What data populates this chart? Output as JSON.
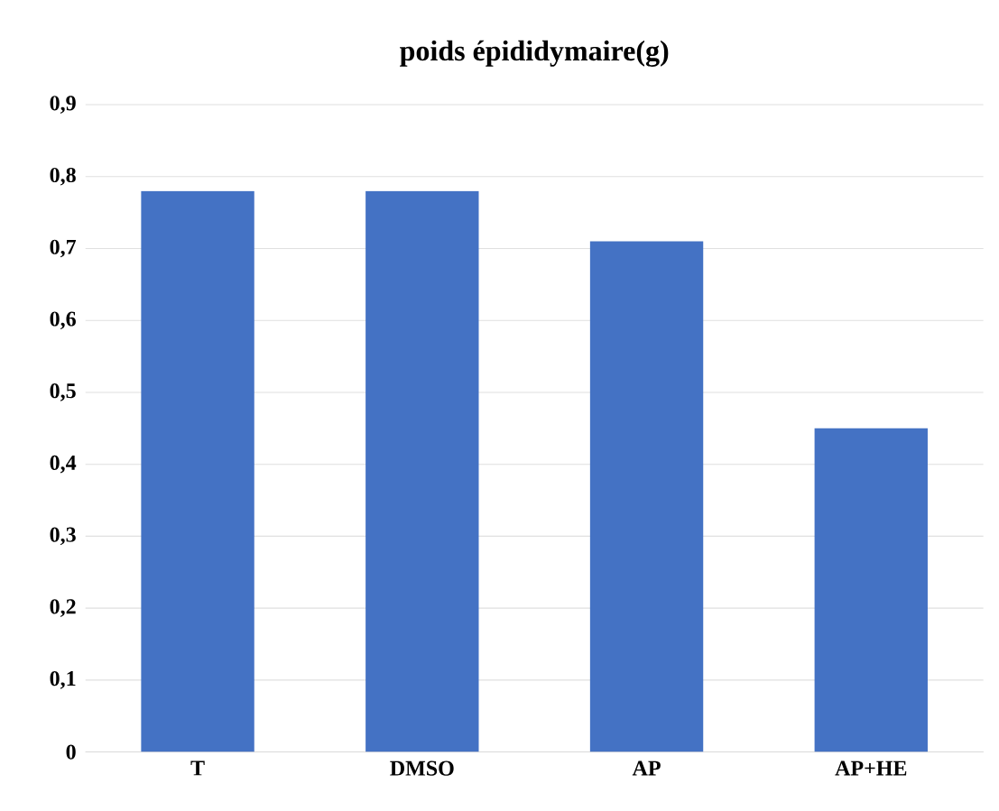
{
  "chart_data": {
    "type": "bar",
    "title": "poids épididymaire(g)",
    "categories": [
      "T",
      "DMSO",
      "AP",
      "AP+HE"
    ],
    "values": [
      0.78,
      0.78,
      0.71,
      0.45
    ],
    "color": "#4472c4",
    "ylim": [
      0,
      0.9
    ],
    "yticks": [
      {
        "value": 0,
        "label": "0"
      },
      {
        "value": 0.1,
        "label": "0,1"
      },
      {
        "value": 0.2,
        "label": "0,2"
      },
      {
        "value": 0.3,
        "label": "0,3"
      },
      {
        "value": 0.4,
        "label": "0,4"
      },
      {
        "value": 0.5,
        "label": "0,5"
      },
      {
        "value": 0.6,
        "label": "0,6"
      },
      {
        "value": 0.7,
        "label": "0,7"
      },
      {
        "value": 0.8,
        "label": "0,8"
      },
      {
        "value": 0.9,
        "label": "0,9"
      }
    ],
    "grid": "y"
  }
}
